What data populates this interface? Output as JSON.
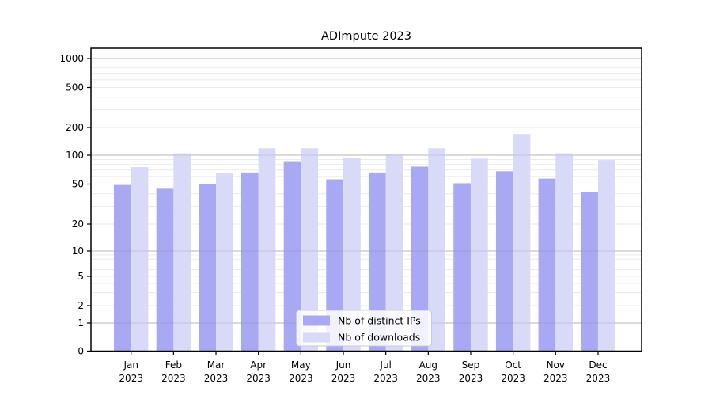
{
  "chart_data": {
    "type": "bar",
    "title": "ADImpute 2023",
    "yscale": "symlog",
    "grid": true,
    "legend_position": "lower center",
    "ylim": [
      0,
      1300
    ],
    "y_ticks": [
      1000,
      500,
      200,
      100,
      50,
      20,
      10,
      5,
      2,
      1,
      0
    ],
    "categories": [
      {
        "month": "Jan",
        "year": "2023"
      },
      {
        "month": "Feb",
        "year": "2023"
      },
      {
        "month": "Mar",
        "year": "2023"
      },
      {
        "month": "Apr",
        "year": "2023"
      },
      {
        "month": "May",
        "year": "2023"
      },
      {
        "month": "Jun",
        "year": "2023"
      },
      {
        "month": "Jul",
        "year": "2023"
      },
      {
        "month": "Aug",
        "year": "2023"
      },
      {
        "month": "Sep",
        "year": "2023"
      },
      {
        "month": "Oct",
        "year": "2023"
      },
      {
        "month": "Nov",
        "year": "2023"
      },
      {
        "month": "Dec",
        "year": "2023"
      }
    ],
    "series": [
      {
        "name": "Nb of distinct IPs",
        "color": "#a9a9f3",
        "values": [
          49,
          45,
          50,
          66,
          85,
          56,
          66,
          76,
          51,
          68,
          57,
          42
        ]
      },
      {
        "name": "Nb of downloads",
        "color": "#d9d9f8",
        "values": [
          75,
          105,
          65,
          119,
          119,
          93,
          103,
          119,
          92,
          170,
          105,
          89
        ]
      }
    ],
    "colors": {
      "axis": "#000000",
      "grid_minor": "#eaeaea",
      "grid_major": "#c6c6c6",
      "legend_border": "#cccccc",
      "legend_background": "#ffffff"
    }
  }
}
